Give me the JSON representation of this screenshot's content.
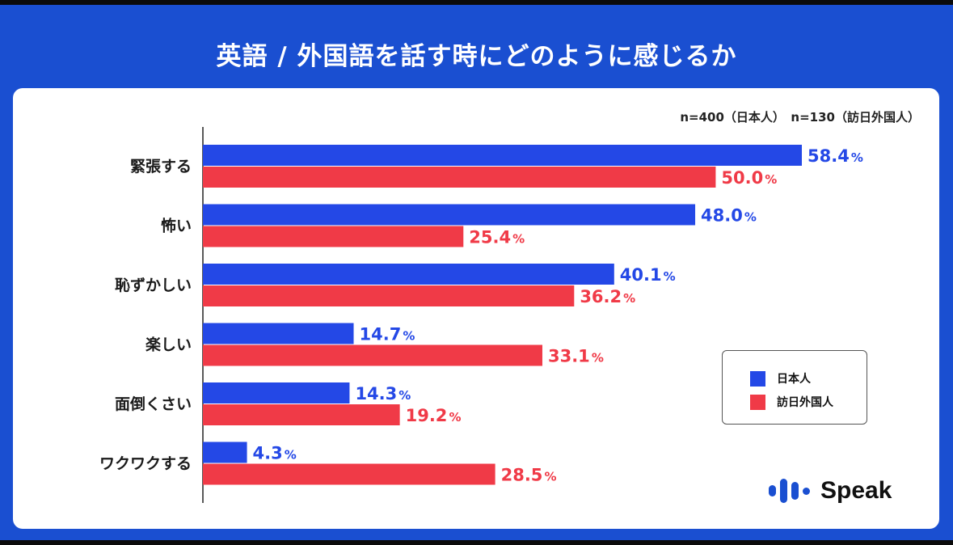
{
  "title": "英語 / 外国語を話す時にどのように感じるか",
  "sample_note": "n=400（日本人）　n=130（訪日外国人）",
  "logo_text": "Speak",
  "chart_data": {
    "type": "bar",
    "orientation": "horizontal",
    "title": "英語 / 外国語を話す時にどのように感じるか",
    "categories": [
      "緊張する",
      "怖い",
      "恥ずかしい",
      "楽しい",
      "面倒くさい",
      "ワクワクする"
    ],
    "series": [
      {
        "name": "日本人",
        "color": "#2448e6",
        "values": [
          58.4,
          48.0,
          40.1,
          14.7,
          14.3,
          4.3
        ]
      },
      {
        "name": "訪日外国人",
        "color": "#f03a47",
        "values": [
          50.0,
          25.4,
          36.2,
          33.1,
          19.2,
          28.5
        ]
      }
    ],
    "value_labels": [
      [
        "58.4",
        "48.0",
        "40.1",
        "14.7",
        "14.3",
        "4.3"
      ],
      [
        "50.0",
        "25.4",
        "36.2",
        "33.1",
        "19.2",
        "28.5"
      ]
    ],
    "unit": "%",
    "xlim": [
      0,
      58.4
    ],
    "grid": false,
    "legend": "right"
  }
}
